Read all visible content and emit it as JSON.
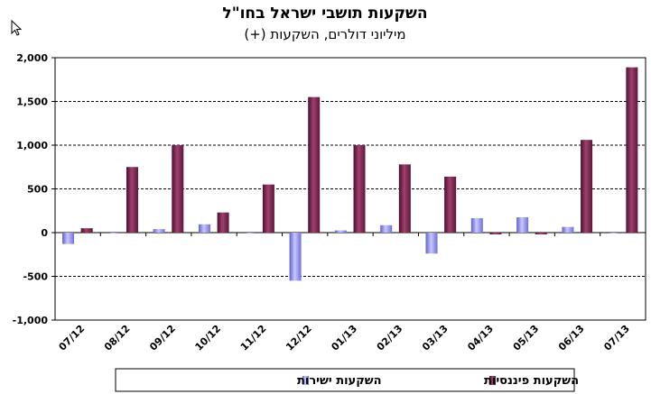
{
  "chart_data": {
    "type": "bar",
    "title": "השקעות תושבי ישראל בחו\"ל",
    "subtitle": "מיליוני דולרים, השקעות (+)",
    "xlabel": "",
    "ylabel": "",
    "ylim": [
      -1000,
      2000
    ],
    "yticks": [
      2000,
      1500,
      1000,
      500,
      0,
      -500,
      -1000
    ],
    "ytick_labels": [
      "2,000",
      "1,500",
      "1,000",
      "500",
      "0",
      "-500",
      "-1,000"
    ],
    "categories": [
      "07/12",
      "08/12",
      "09/12",
      "10/12",
      "11/12",
      "12/12",
      "01/13",
      "02/13",
      "03/13",
      "04/13",
      "05/13",
      "06/13",
      "07/13"
    ],
    "grid": "horizontal dashed",
    "legend_position": "bottom",
    "series": [
      {
        "name": "השקעות ישירות",
        "color": "#9999ff",
        "values": [
          -130,
          -10,
          40,
          95,
          -10,
          -550,
          25,
          85,
          -240,
          165,
          175,
          65,
          -10
        ]
      },
      {
        "name": "השקעות פיננסיות",
        "color": "#993366",
        "values": [
          50,
          750,
          1000,
          230,
          550,
          1550,
          1000,
          780,
          640,
          -20,
          -20,
          1060,
          1890
        ]
      }
    ]
  }
}
